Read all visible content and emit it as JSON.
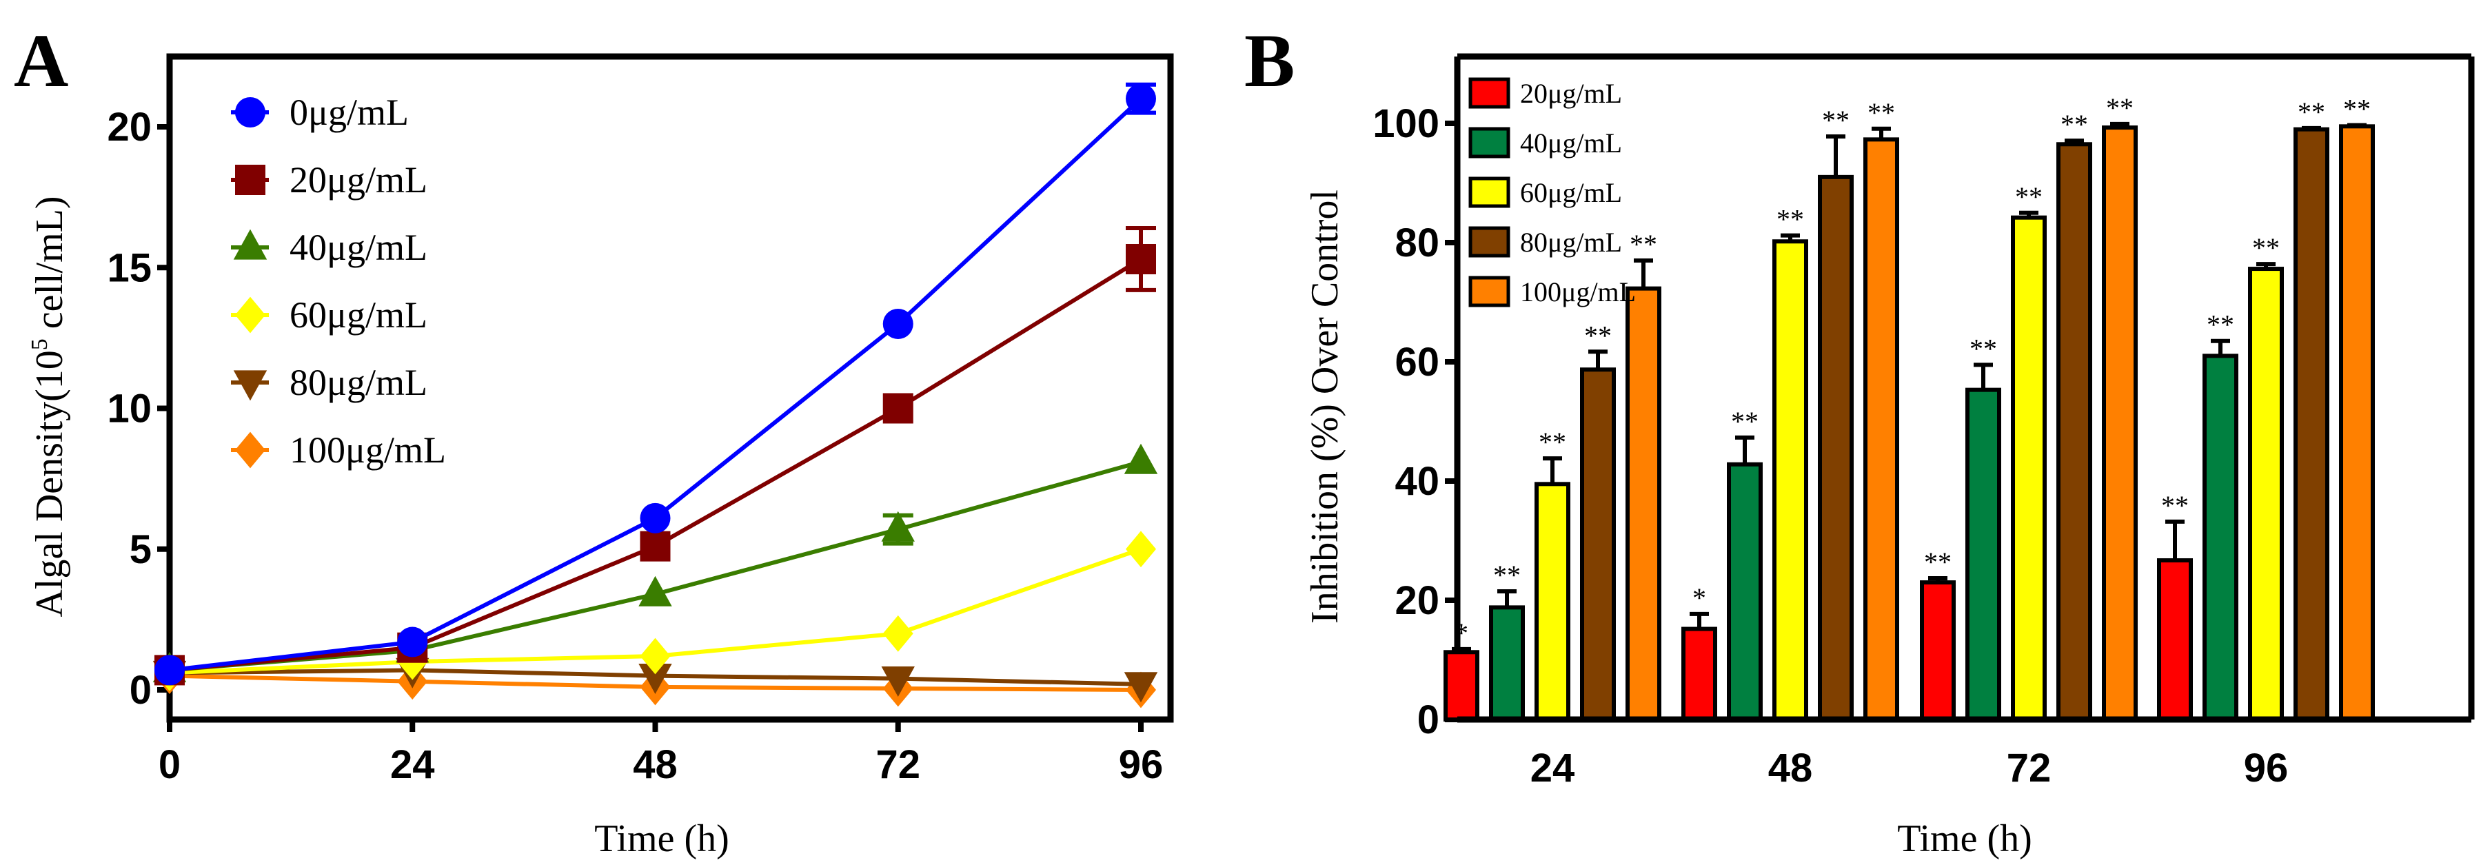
{
  "chart_data": [
    {
      "panel": "A",
      "type": "line",
      "xlabel": "Time (h)",
      "ylabel": "Algal Density(10",
      "ylabel_sup": "5",
      "ylabel_tail": " cell/mL)",
      "x": [
        0,
        24,
        48,
        72,
        96
      ],
      "xticks": [
        "0",
        "24",
        "48",
        "72",
        "96"
      ],
      "yticks": [
        "0",
        "5",
        "10",
        "15",
        "20"
      ],
      "ylim": [
        -1,
        22.5
      ],
      "xlim": [
        0,
        98
      ],
      "legend": "top-left",
      "series": [
        {
          "name": "0μg/mL",
          "color": "#0000ff",
          "marker": "circle",
          "values": [
            0.7,
            1.7,
            6.1,
            13.0,
            21.0
          ],
          "errors": [
            0.1,
            0.1,
            0.2,
            0.2,
            0.5
          ]
        },
        {
          "name": "20μg/mL",
          "color": "#800000",
          "marker": "square",
          "values": [
            0.7,
            1.5,
            5.1,
            10.0,
            15.3
          ],
          "errors": [
            0.1,
            0.1,
            0.2,
            0.2,
            1.1
          ]
        },
        {
          "name": "40μg/mL",
          "color": "#3a7d00",
          "marker": "triangle-up",
          "values": [
            0.7,
            1.4,
            3.4,
            5.7,
            8.1
          ],
          "errors": [
            0.1,
            0.1,
            0.1,
            0.5,
            0.2
          ]
        },
        {
          "name": "60μg/mL",
          "color": "#ffff00",
          "marker": "diamond",
          "values": [
            0.6,
            1.0,
            1.2,
            2.0,
            5.0
          ],
          "errors": [
            0.1,
            0.1,
            0.1,
            0.1,
            0.1
          ]
        },
        {
          "name": "80μg/mL",
          "color": "#7f3f00",
          "marker": "triangle-down",
          "values": [
            0.6,
            0.7,
            0.5,
            0.4,
            0.2
          ],
          "errors": [
            0.05,
            0.05,
            0.05,
            0.05,
            0.05
          ]
        },
        {
          "name": "100μg/mL",
          "color": "#ff8000",
          "marker": "diamond",
          "values": [
            0.5,
            0.3,
            0.1,
            0.05,
            0.0
          ],
          "errors": [
            0.05,
            0.05,
            0.05,
            0.05,
            0.05
          ]
        }
      ]
    },
    {
      "panel": "B",
      "type": "bar",
      "xlabel": "Time (h)",
      "ylabel": "Inhibition (%) Over Control",
      "categories": [
        "24",
        "48",
        "72",
        "96"
      ],
      "yticks": [
        "0",
        "20",
        "40",
        "60",
        "80",
        "100"
      ],
      "ylim": [
        0,
        105
      ],
      "legend": "top-left",
      "series": [
        {
          "name": "20μg/mL",
          "color": "#ff0000",
          "values": [
            11.3,
            15.2,
            23.0,
            26.7
          ],
          "errors": [
            0.5,
            2.5,
            0.7,
            6.5
          ],
          "sig": [
            "*",
            "*",
            "**",
            "**"
          ]
        },
        {
          "name": "40μg/mL",
          "color": "#008040",
          "values": [
            18.8,
            42.8,
            55.3,
            61.0
          ],
          "errors": [
            2.7,
            4.5,
            4.2,
            2.5
          ],
          "sig": [
            "**",
            "**",
            "**",
            "**"
          ]
        },
        {
          "name": "60μg/mL",
          "color": "#ffff00",
          "values": [
            39.5,
            80.2,
            84.2,
            75.6
          ],
          "errors": [
            4.3,
            1.0,
            0.8,
            0.8
          ],
          "sig": [
            "**",
            "**",
            "**",
            "**"
          ]
        },
        {
          "name": "80μg/mL",
          "color": "#804000",
          "values": [
            58.7,
            91.0,
            96.5,
            99.0
          ],
          "errors": [
            3.0,
            6.8,
            0.6,
            0.2
          ],
          "sig": [
            "**",
            "**",
            "**",
            "**"
          ]
        },
        {
          "name": "100μg/mL",
          "color": "#ff8000",
          "values": [
            72.3,
            97.3,
            99.3,
            99.5
          ],
          "errors": [
            4.7,
            1.8,
            0.6,
            0.2
          ],
          "sig": [
            "**",
            "**",
            "**",
            "**"
          ]
        }
      ]
    }
  ]
}
